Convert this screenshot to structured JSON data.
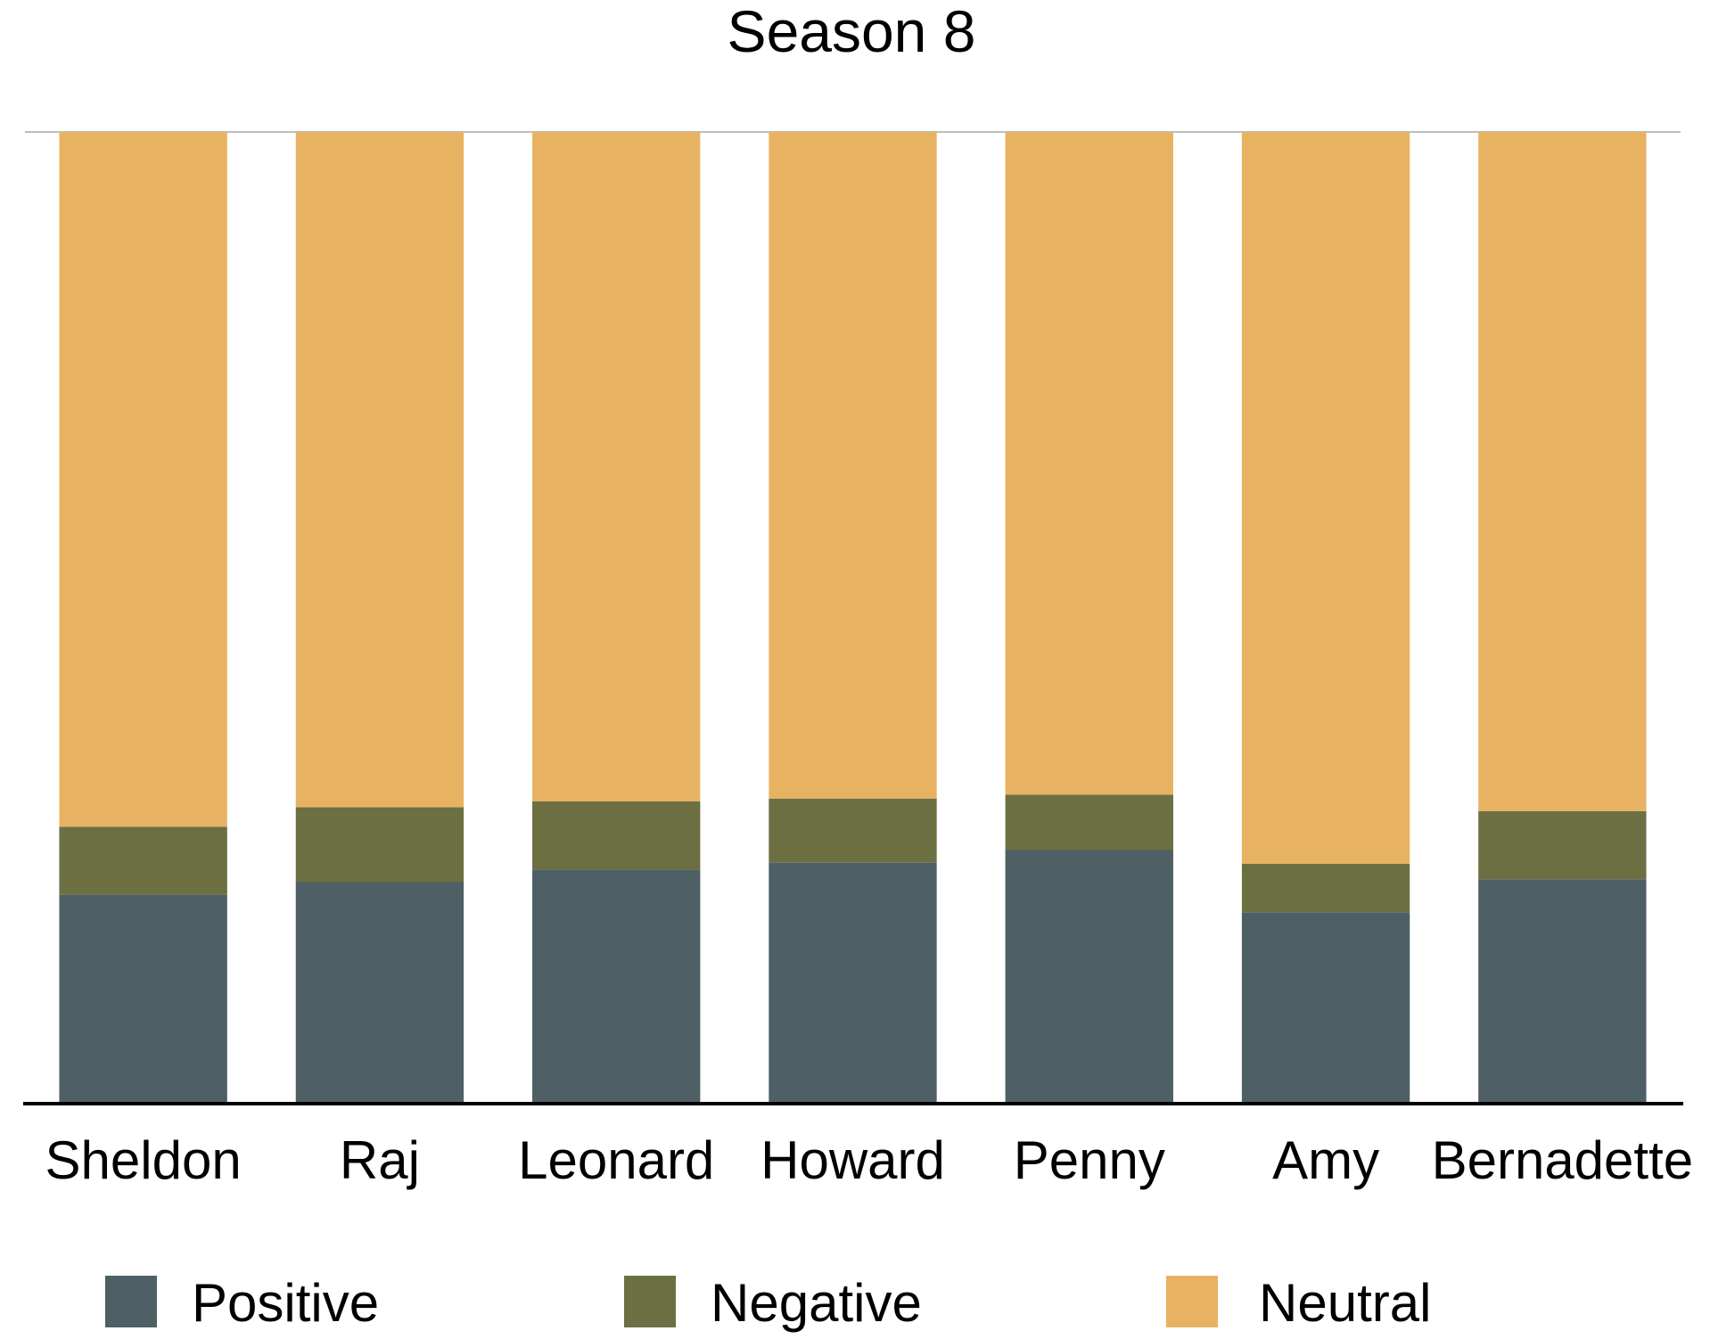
{
  "chart_data": {
    "type": "bar",
    "stacked": true,
    "percent_stacked": true,
    "title": "Season 8",
    "xlabel": "",
    "ylabel": "",
    "ylim": [
      0,
      100
    ],
    "grid": false,
    "legend_position": "bottom",
    "categories": [
      "Sheldon",
      "Raj",
      "Leonard",
      "Howard",
      "Penny",
      "Amy",
      "Bernadette"
    ],
    "series": [
      {
        "name": "Positive",
        "color": "#4e5f65",
        "values": [
          21.5,
          22.8,
          24.1,
          24.8,
          26.1,
          19.7,
          23.1
        ]
      },
      {
        "name": "Negative",
        "color": "#6c6f42",
        "values": [
          7.0,
          7.7,
          7.0,
          6.6,
          5.7,
          5.0,
          7.0
        ]
      },
      {
        "name": "Neutral",
        "color": "#e7b362",
        "values": [
          71.5,
          69.5,
          68.9,
          68.6,
          68.2,
          75.3,
          69.9
        ]
      }
    ]
  }
}
